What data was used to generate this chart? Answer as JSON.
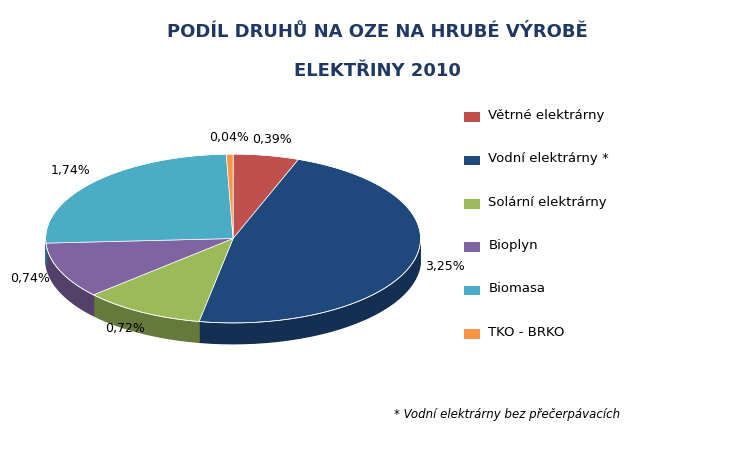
{
  "title_line1": "PODÍL DRUHŮ NA OZE NA HRUBÉ VÝROBĚ",
  "title_line2": "ELEKTŘINY 2010",
  "slices": [
    {
      "label": "Větrné elektrárny",
      "value": 0.39,
      "color": "#C0504D",
      "pct_label": "0,39%"
    },
    {
      "label": "Vodní elektrárny *",
      "value": 3.25,
      "color": "#1F497D",
      "pct_label": "3,25%"
    },
    {
      "label": "Solární elektrárny",
      "value": 0.72,
      "color": "#9BBB59",
      "pct_label": "0,72%"
    },
    {
      "label": "Bioplyn",
      "value": 0.74,
      "color": "#8064A2",
      "pct_label": "0,74%"
    },
    {
      "label": "Biomasa",
      "value": 1.74,
      "color": "#4BACC6",
      "pct_label": "1,74%"
    },
    {
      "label": "TKO - BRKO",
      "value": 0.04,
      "color": "#F79646",
      "pct_label": "0,04%"
    }
  ],
  "footnote": "* Vodní elektrárny bez přečerpávacích",
  "title_color": "#1F3864",
  "background_color": "#FFFFFF",
  "title_fontsize": 13,
  "legend_fontsize": 9.5,
  "label_fontsize": 9,
  "footnote_fontsize": 8.5
}
